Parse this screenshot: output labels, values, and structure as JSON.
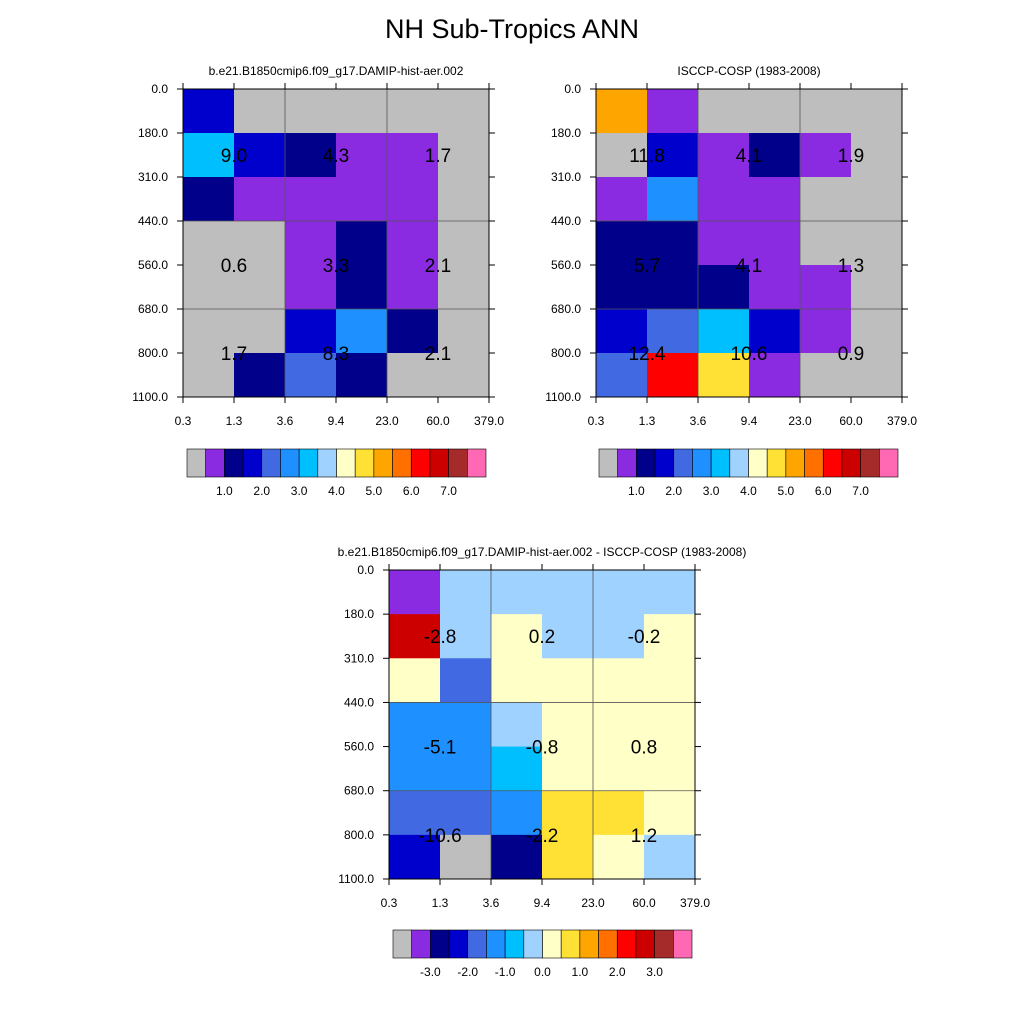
{
  "title": "NH Sub-Tropics ANN",
  "chart_data": [
    {
      "type": "heatmap",
      "title": "b.e21.B1850cmip6.f09_g17.DAMIP-hist-aer.002",
      "x_ticks": [
        "0.3",
        "1.3",
        "3.6",
        "9.4",
        "23.0",
        "60.0",
        "379.0"
      ],
      "y_ticks": [
        "0.0",
        "180.0",
        "310.0",
        "440.0",
        "560.0",
        "680.0",
        "800.0",
        "1100.0"
      ],
      "cell_colors": [
        [
          "#0000cd",
          "#bebebe",
          "#bebebe",
          "#bebebe",
          "#bebebe",
          "#bebebe"
        ],
        [
          "#00bfff",
          "#0000cd",
          "#00008b",
          "#8a2be2",
          "#8a2be2",
          "#bebebe"
        ],
        [
          "#00008b",
          "#8a2be2",
          "#8a2be2",
          "#8a2be2",
          "#8a2be2",
          "#bebebe"
        ],
        [
          "#bebebe",
          "#bebebe",
          "#8a2be2",
          "#00008b",
          "#8a2be2",
          "#bebebe"
        ],
        [
          "#bebebe",
          "#bebebe",
          "#8a2be2",
          "#00008b",
          "#8a2be2",
          "#bebebe"
        ],
        [
          "#bebebe",
          "#bebebe",
          "#0000cd",
          "#1e90ff",
          "#00008b",
          "#bebebe"
        ],
        [
          "#bebebe",
          "#00008b",
          "#4169e1",
          "#00008b",
          "#bebebe",
          "#bebebe"
        ]
      ],
      "cell_labels": [
        {
          "text": "9.0",
          "ix": 0,
          "iy": 0
        },
        {
          "text": "4.3",
          "ix": 1,
          "iy": 0
        },
        {
          "text": "1.7",
          "ix": 2,
          "iy": 0
        },
        {
          "text": "0.6",
          "ix": 0,
          "iy": 1
        },
        {
          "text": "3.3",
          "ix": 1,
          "iy": 1
        },
        {
          "text": "2.1",
          "ix": 2,
          "iy": 1
        },
        {
          "text": "1.7",
          "ix": 0,
          "iy": 2
        },
        {
          "text": "8.3",
          "ix": 1,
          "iy": 2
        },
        {
          "text": "2.1",
          "ix": 2,
          "iy": 2
        }
      ],
      "colorbar": {
        "colors": [
          "#bebebe",
          "#8a2be2",
          "#00008b",
          "#0000cd",
          "#4169e1",
          "#1e90ff",
          "#00bfff",
          "#a0d2ff",
          "#ffffc8",
          "#ffe135",
          "#ffa500",
          "#ff7000",
          "#ff0000",
          "#cd0000",
          "#a52a2a",
          "#ff69b4"
        ],
        "labels": [
          "1.0",
          "2.0",
          "3.0",
          "4.0",
          "5.0",
          "6.0",
          "7.0"
        ]
      }
    },
    {
      "type": "heatmap",
      "title": "ISCCP-COSP (1983-2008)",
      "x_ticks": [
        "0.3",
        "1.3",
        "3.6",
        "9.4",
        "23.0",
        "60.0",
        "379.0"
      ],
      "y_ticks": [
        "0.0",
        "180.0",
        "310.0",
        "440.0",
        "560.0",
        "680.0",
        "800.0",
        "1100.0"
      ],
      "cell_colors": [
        [
          "#ffa500",
          "#8a2be2",
          "#bebebe",
          "#bebebe",
          "#bebebe",
          "#bebebe"
        ],
        [
          "#bebebe",
          "#0000cd",
          "#8a2be2",
          "#00008b",
          "#8a2be2",
          "#bebebe"
        ],
        [
          "#8a2be2",
          "#1e90ff",
          "#8a2be2",
          "#8a2be2",
          "#bebebe",
          "#bebebe"
        ],
        [
          "#00008b",
          "#00008b",
          "#8a2be2",
          "#8a2be2",
          "#bebebe",
          "#bebebe"
        ],
        [
          "#00008b",
          "#00008b",
          "#00008b",
          "#8a2be2",
          "#8a2be2",
          "#bebebe"
        ],
        [
          "#0000cd",
          "#4169e1",
          "#00bfff",
          "#0000cd",
          "#8a2be2",
          "#bebebe"
        ],
        [
          "#4169e1",
          "#ff0000",
          "#ffe135",
          "#8a2be2",
          "#bebebe",
          "#bebebe"
        ]
      ],
      "cell_labels": [
        {
          "text": "11.8",
          "ix": 0,
          "iy": 0
        },
        {
          "text": "4.1",
          "ix": 1,
          "iy": 0
        },
        {
          "text": "1.9",
          "ix": 2,
          "iy": 0
        },
        {
          "text": "5.7",
          "ix": 0,
          "iy": 1
        },
        {
          "text": "4.1",
          "ix": 1,
          "iy": 1
        },
        {
          "text": "1.3",
          "ix": 2,
          "iy": 1
        },
        {
          "text": "12.4",
          "ix": 0,
          "iy": 2
        },
        {
          "text": "10.6",
          "ix": 1,
          "iy": 2
        },
        {
          "text": "0.9",
          "ix": 2,
          "iy": 2
        }
      ],
      "colorbar": {
        "colors": [
          "#bebebe",
          "#8a2be2",
          "#00008b",
          "#0000cd",
          "#4169e1",
          "#1e90ff",
          "#00bfff",
          "#a0d2ff",
          "#ffffc8",
          "#ffe135",
          "#ffa500",
          "#ff7000",
          "#ff0000",
          "#cd0000",
          "#a52a2a",
          "#ff69b4"
        ],
        "labels": [
          "1.0",
          "2.0",
          "3.0",
          "4.0",
          "5.0",
          "6.0",
          "7.0"
        ]
      }
    },
    {
      "type": "heatmap",
      "title": "b.e21.B1850cmip6.f09_g17.DAMIP-hist-aer.002 - ISCCP-COSP (1983-2008)",
      "x_ticks": [
        "0.3",
        "1.3",
        "3.6",
        "9.4",
        "23.0",
        "60.0",
        "379.0"
      ],
      "y_ticks": [
        "0.0",
        "180.0",
        "310.0",
        "440.0",
        "560.0",
        "680.0",
        "800.0",
        "1100.0"
      ],
      "cell_colors": [
        [
          "#8a2be2",
          "#a0d2ff",
          "#a0d2ff",
          "#a0d2ff",
          "#a0d2ff",
          "#a0d2ff"
        ],
        [
          "#cd0000",
          "#a0d2ff",
          "#ffffc8",
          "#a0d2ff",
          "#a0d2ff",
          "#ffffc8"
        ],
        [
          "#ffffc8",
          "#4169e1",
          "#ffffc8",
          "#ffffc8",
          "#ffffc8",
          "#ffffc8"
        ],
        [
          "#1e90ff",
          "#1e90ff",
          "#a0d2ff",
          "#ffffc8",
          "#ffffc8",
          "#ffffc8"
        ],
        [
          "#1e90ff",
          "#1e90ff",
          "#00bfff",
          "#ffffc8",
          "#ffffc8",
          "#ffffc8"
        ],
        [
          "#4169e1",
          "#4169e1",
          "#1e90ff",
          "#ffe135",
          "#ffe135",
          "#ffffc8"
        ],
        [
          "#0000cd",
          "#bebebe",
          "#00008b",
          "#ffe135",
          "#ffffc8",
          "#a0d2ff"
        ]
      ],
      "cell_labels": [
        {
          "text": "-2.8",
          "ix": 0,
          "iy": 0
        },
        {
          "text": "0.2",
          "ix": 1,
          "iy": 0
        },
        {
          "text": "-0.2",
          "ix": 2,
          "iy": 0
        },
        {
          "text": "-5.1",
          "ix": 0,
          "iy": 1
        },
        {
          "text": "-0.8",
          "ix": 1,
          "iy": 1
        },
        {
          "text": "0.8",
          "ix": 2,
          "iy": 1
        },
        {
          "text": "-10.6",
          "ix": 0,
          "iy": 2
        },
        {
          "text": "-2.2",
          "ix": 1,
          "iy": 2
        },
        {
          "text": "1.2",
          "ix": 2,
          "iy": 2
        }
      ],
      "colorbar": {
        "colors": [
          "#bebebe",
          "#8a2be2",
          "#00008b",
          "#0000cd",
          "#4169e1",
          "#1e90ff",
          "#00bfff",
          "#a0d2ff",
          "#ffffc8",
          "#ffe135",
          "#ffa500",
          "#ff7000",
          "#ff0000",
          "#cd0000",
          "#a52a2a",
          "#ff69b4"
        ],
        "labels": [
          "-3.0",
          "-2.0",
          "-1.0",
          "0.0",
          "1.0",
          "2.0",
          "3.0"
        ]
      }
    }
  ]
}
